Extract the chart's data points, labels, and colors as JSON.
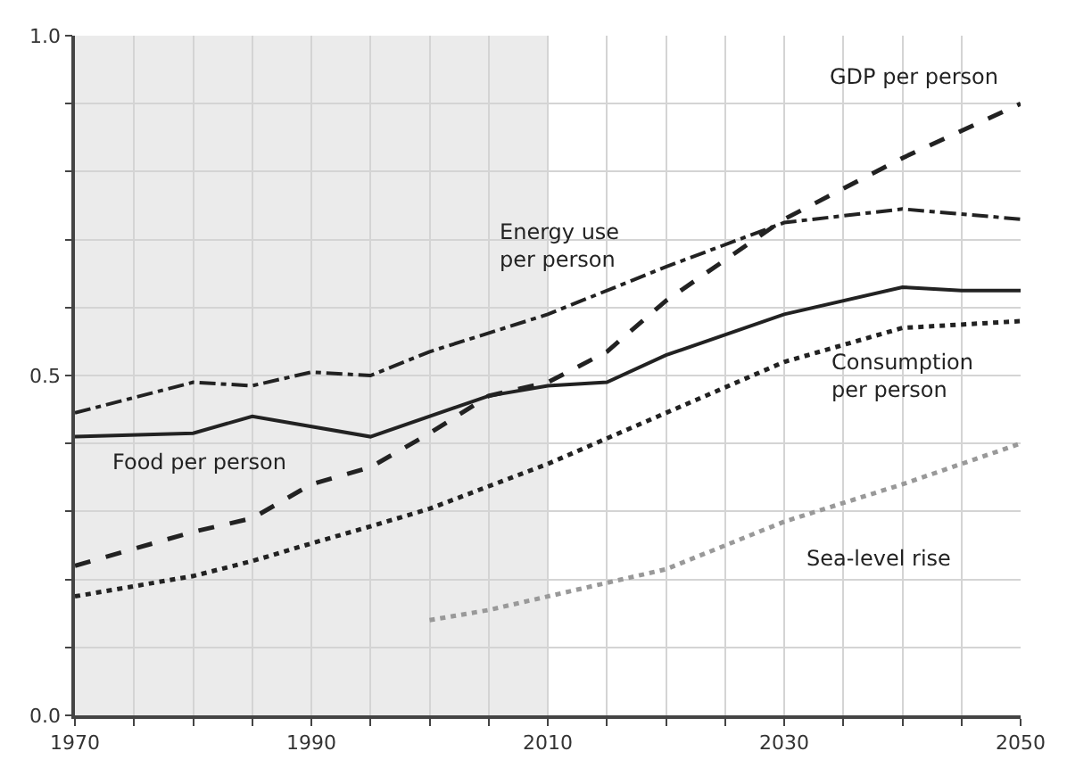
{
  "chart_data": {
    "type": "line",
    "xlim": [
      1970,
      2050
    ],
    "ylim": [
      0,
      1
    ],
    "xticks": [
      {
        "value": 1970,
        "label": "1970"
      },
      {
        "value": 1975,
        "label": null
      },
      {
        "value": 1980,
        "label": null
      },
      {
        "value": 1985,
        "label": null
      },
      {
        "value": 1990,
        "label": "1990"
      },
      {
        "value": 1995,
        "label": null
      },
      {
        "value": 2000,
        "label": null
      },
      {
        "value": 2005,
        "label": null
      },
      {
        "value": 2010,
        "label": "2010"
      },
      {
        "value": 2015,
        "label": null
      },
      {
        "value": 2020,
        "label": null
      },
      {
        "value": 2025,
        "label": null
      },
      {
        "value": 2030,
        "label": "2030"
      },
      {
        "value": 2035,
        "label": null
      },
      {
        "value": 2040,
        "label": null
      },
      {
        "value": 2045,
        "label": null
      },
      {
        "value": 2050,
        "label": "2050"
      }
    ],
    "yticks": [
      {
        "value": 0,
        "label": "0.0"
      },
      {
        "value": 0.1,
        "label": null
      },
      {
        "value": 0.2,
        "label": null
      },
      {
        "value": 0.3,
        "label": null
      },
      {
        "value": 0.4,
        "label": null
      },
      {
        "value": 0.5,
        "label": "0.5"
      },
      {
        "value": 0.6,
        "label": null
      },
      {
        "value": 0.7,
        "label": null
      },
      {
        "value": 0.8,
        "label": null
      },
      {
        "value": 0.9,
        "label": null
      },
      {
        "value": 1,
        "label": "1.0"
      }
    ],
    "grid": true,
    "legend": false,
    "marker": "none",
    "bands": [
      {
        "axis": "x",
        "from": 1970,
        "to": 2010,
        "color": "#ebebeb"
      }
    ],
    "series": [
      {
        "name": "Food per person",
        "color": "#222222",
        "line_style": "solid",
        "x": [
          1970,
          1980,
          1985,
          1995,
          2005,
          2010,
          2015,
          2020,
          2030,
          2040,
          2045,
          2050
        ],
        "values": [
          0.41,
          0.415,
          0.44,
          0.41,
          0.47,
          0.485,
          0.49,
          0.53,
          0.59,
          0.63,
          0.625,
          0.625
        ]
      },
      {
        "name": "Energy use per person",
        "color": "#222222",
        "line_style": "dashdot",
        "x": [
          1970,
          1980,
          1985,
          1990,
          1995,
          2000,
          2010,
          2020,
          2030,
          2040,
          2050
        ],
        "values": [
          0.445,
          0.49,
          0.485,
          0.505,
          0.5,
          0.535,
          0.59,
          0.66,
          0.725,
          0.745,
          0.73
        ]
      },
      {
        "name": "GDP per person",
        "color": "#222222",
        "line_style": "dashed",
        "x": [
          1970,
          1980,
          1985,
          1990,
          1995,
          2000,
          2005,
          2010,
          2015,
          2020,
          2030,
          2040,
          2050
        ],
        "values": [
          0.22,
          0.27,
          0.29,
          0.34,
          0.365,
          0.415,
          0.47,
          0.49,
          0.535,
          0.61,
          0.73,
          0.82,
          0.9
        ]
      },
      {
        "name": "Consumption per person",
        "color": "#222222",
        "line_style": "dotted",
        "x": [
          1970,
          1980,
          1985,
          1990,
          1995,
          2000,
          2010,
          2020,
          2030,
          2040,
          2050
        ],
        "values": [
          0.175,
          0.205,
          0.227,
          0.253,
          0.278,
          0.304,
          0.37,
          0.445,
          0.52,
          0.57,
          0.58
        ]
      },
      {
        "name": "Sea-level rise",
        "color": "#999999",
        "line_style": "dotted",
        "x": [
          2000,
          2005,
          2010,
          2020,
          2030,
          2040,
          2050
        ],
        "values": [
          0.14,
          0.155,
          0.175,
          0.215,
          0.285,
          0.34,
          0.4
        ]
      }
    ]
  }
}
